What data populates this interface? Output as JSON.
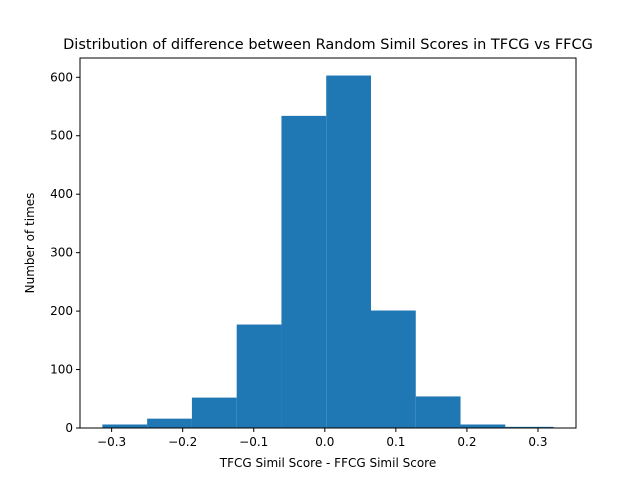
{
  "chart_data": {
    "type": "bar",
    "title": "Distribution of difference between Random Simil Scores in TFCG vs FFCG",
    "xlabel": "TFCG Simil Score - FFCG Simil Score",
    "ylabel": "Number of times",
    "bar_color": "#1f77b4",
    "bins": [
      {
        "x0": -0.313,
        "x1": -0.25,
        "value": 6
      },
      {
        "x0": -0.25,
        "x1": -0.187,
        "value": 16
      },
      {
        "x0": -0.187,
        "x1": -0.124,
        "value": 52
      },
      {
        "x0": -0.124,
        "x1": -0.061,
        "value": 177
      },
      {
        "x0": -0.061,
        "x1": 0.002,
        "value": 534
      },
      {
        "x0": 0.002,
        "x1": 0.065,
        "value": 603
      },
      {
        "x0": 0.065,
        "x1": 0.128,
        "value": 201
      },
      {
        "x0": 0.128,
        "x1": 0.191,
        "value": 54
      },
      {
        "x0": 0.191,
        "x1": 0.254,
        "value": 6
      },
      {
        "x0": 0.254,
        "x1": 0.322,
        "value": 2
      }
    ],
    "xlim": [
      -0.3445,
      0.3535
    ],
    "ylim": [
      0,
      633
    ],
    "xticks": [
      -0.3,
      -0.2,
      -0.1,
      0.0,
      0.1,
      0.2,
      0.3
    ],
    "xtick_labels": [
      "−0.3",
      "−0.2",
      "−0.1",
      "0.0",
      "0.1",
      "0.2",
      "0.3"
    ],
    "yticks": [
      0,
      100,
      200,
      300,
      400,
      500,
      600
    ],
    "ytick_labels": [
      "0",
      "100",
      "200",
      "300",
      "400",
      "500",
      "600"
    ],
    "grid": false,
    "legend": "none"
  }
}
